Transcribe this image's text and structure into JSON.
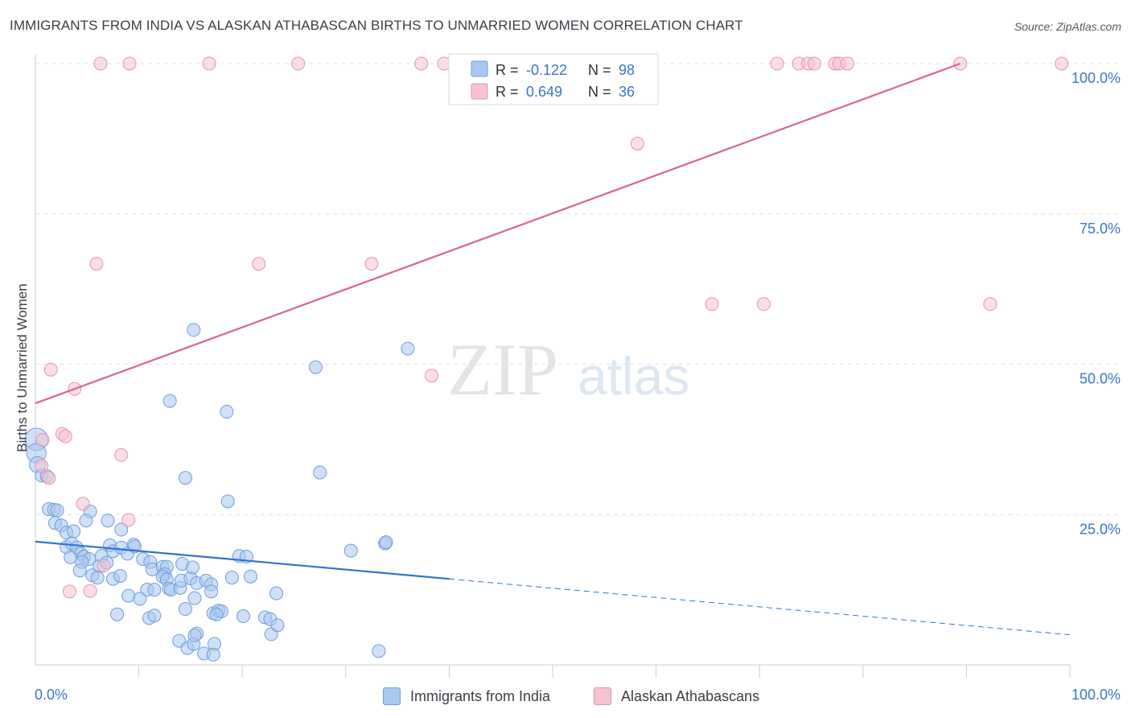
{
  "header": {
    "title": "IMMIGRANTS FROM INDIA VS ALASKAN ATHABASCAN BIRTHS TO UNMARRIED WOMEN CORRELATION CHART",
    "source": "Source: ZipAtlas.com"
  },
  "watermark": {
    "zip": "ZIP",
    "atlas": "atlas"
  },
  "colors": {
    "blue_fill": "#a9c7ef",
    "blue_stroke": "#6d9de0",
    "blue_line": "#2f74d0",
    "pink_fill": "#f6c2d0",
    "pink_stroke": "#e891ab",
    "pink_line": "#e0628a",
    "axis_text": "#3b74c9",
    "grid": "#dde1e7"
  },
  "legend": {
    "r_label": "R =",
    "n_label": "N =",
    "india": {
      "r": "-0.122",
      "n": "98"
    },
    "athabascan": {
      "r": "0.649",
      "n": "36"
    }
  },
  "bottom_legend": {
    "india": "Immigrants from India",
    "athabascan": "Alaskan Athabascans"
  },
  "chart_data": {
    "type": "scatter",
    "title": "IMMIGRANTS FROM INDIA VS ALASKAN ATHABASCAN BIRTHS TO UNMARRIED WOMEN CORRELATION CHART",
    "xlabel": "",
    "ylabel": "Births to Unmarried Women",
    "xlim": [
      0,
      100
    ],
    "ylim": [
      0,
      100
    ],
    "x_tick_labels": {
      "min": "0.0%",
      "max": "100.0%"
    },
    "y_ticks": [
      {
        "value": 25,
        "label": "25.0%"
      },
      {
        "value": 50,
        "label": "50.0%"
      },
      {
        "value": 75,
        "label": "75.0%"
      },
      {
        "value": 100,
        "label": "100.0%"
      }
    ],
    "series": [
      {
        "name": "Immigrants from India",
        "r": -0.122,
        "n": 98,
        "trend": {
          "x0": 0,
          "y0": 20.5,
          "x1": 100,
          "y1": 5.0,
          "solid_until": 40
        },
        "points": [
          [
            0.1,
            37.5,
            14
          ],
          [
            0.1,
            35.2,
            12
          ],
          [
            0.2,
            33.3,
            10
          ],
          [
            0.6,
            31.5,
            8
          ],
          [
            1.1,
            31.4,
            8
          ],
          [
            1.3,
            25.9,
            8
          ],
          [
            1.8,
            25.8,
            8
          ],
          [
            2.1,
            25.7,
            8
          ],
          [
            1.9,
            23.6,
            8
          ],
          [
            2.5,
            23.2,
            8
          ],
          [
            3.0,
            22.0,
            8
          ],
          [
            3.7,
            22.2,
            8
          ],
          [
            5.3,
            25.5,
            8
          ],
          [
            4.9,
            24.0,
            8
          ],
          [
            7.0,
            24.0,
            8
          ],
          [
            8.3,
            22.5,
            8
          ],
          [
            3.0,
            19.6,
            8
          ],
          [
            3.5,
            20.2,
            8
          ],
          [
            4.0,
            19.5,
            8
          ],
          [
            4.4,
            18.5,
            8
          ],
          [
            4.7,
            18.0,
            8
          ],
          [
            3.4,
            17.9,
            8
          ],
          [
            5.2,
            17.6,
            8
          ],
          [
            4.5,
            17.1,
            8
          ],
          [
            4.3,
            15.7,
            8
          ],
          [
            5.5,
            14.9,
            8
          ],
          [
            6.2,
            16.4,
            8
          ],
          [
            6.4,
            18.1,
            8
          ],
          [
            6.0,
            14.5,
            8
          ],
          [
            6.9,
            17.0,
            8
          ],
          [
            7.2,
            19.9,
            8
          ],
          [
            7.5,
            18.9,
            8
          ],
          [
            7.5,
            14.3,
            8
          ],
          [
            8.3,
            19.5,
            8
          ],
          [
            8.2,
            14.8,
            8
          ],
          [
            8.9,
            18.5,
            8
          ],
          [
            9.5,
            20.0,
            8
          ],
          [
            9.6,
            19.7,
            8
          ],
          [
            10.4,
            17.6,
            8
          ],
          [
            11.1,
            17.1,
            8
          ],
          [
            11.3,
            15.9,
            8
          ],
          [
            10.8,
            12.5,
            8
          ],
          [
            9.0,
            11.5,
            8
          ],
          [
            10.1,
            11.0,
            8
          ],
          [
            11.5,
            12.5,
            8
          ],
          [
            12.3,
            16.3,
            8
          ],
          [
            12.7,
            16.3,
            8
          ],
          [
            12.5,
            15.1,
            8
          ],
          [
            12.3,
            14.7,
            8
          ],
          [
            12.7,
            14.2,
            8
          ],
          [
            12.9,
            12.7,
            8
          ],
          [
            13.1,
            12.5,
            8
          ],
          [
            14.0,
            12.8,
            8
          ],
          [
            14.1,
            14.0,
            8
          ],
          [
            14.2,
            16.8,
            8
          ],
          [
            15.0,
            14.4,
            8
          ],
          [
            15.2,
            16.2,
            8
          ],
          [
            14.5,
            9.3,
            8
          ],
          [
            15.4,
            11.1,
            8
          ],
          [
            15.6,
            13.6,
            8
          ],
          [
            16.5,
            14.0,
            8
          ],
          [
            17.0,
            13.4,
            8
          ],
          [
            17.0,
            12.2,
            8
          ],
          [
            17.2,
            8.6,
            8
          ],
          [
            17.7,
            9.0,
            8
          ],
          [
            18.0,
            8.9,
            8
          ],
          [
            17.5,
            8.4,
            8
          ],
          [
            13.9,
            4.0,
            8
          ],
          [
            14.7,
            2.8,
            8
          ],
          [
            15.3,
            3.5,
            8
          ],
          [
            15.6,
            5.2,
            8
          ],
          [
            16.3,
            1.9,
            8
          ],
          [
            17.3,
            3.5,
            8
          ],
          [
            19.7,
            18.1,
            8
          ],
          [
            20.4,
            18.0,
            8
          ],
          [
            19.0,
            14.5,
            8
          ],
          [
            20.8,
            14.7,
            8
          ],
          [
            20.1,
            8.1,
            8
          ],
          [
            22.2,
            7.9,
            8
          ],
          [
            22.7,
            7.6,
            8
          ],
          [
            22.8,
            5.1,
            8
          ],
          [
            23.4,
            6.6,
            8
          ],
          [
            23.3,
            11.9,
            8
          ],
          [
            11.0,
            7.8,
            8
          ],
          [
            11.5,
            8.2,
            8
          ],
          [
            15.4,
            4.9,
            8
          ],
          [
            17.2,
            1.7,
            8
          ],
          [
            7.9,
            8.4,
            8
          ],
          [
            13.0,
            43.9,
            8
          ],
          [
            14.5,
            31.1,
            8
          ],
          [
            15.3,
            55.7,
            8
          ],
          [
            18.5,
            42.1,
            8
          ],
          [
            18.6,
            27.2,
            8
          ],
          [
            27.1,
            49.5,
            8
          ],
          [
            27.5,
            32.0,
            8
          ],
          [
            30.5,
            19.0,
            8
          ],
          [
            33.8,
            20.2,
            8
          ],
          [
            33.9,
            20.4,
            8
          ],
          [
            36.0,
            52.6,
            8
          ],
          [
            33.2,
            2.3,
            8
          ]
        ]
      },
      {
        "name": "Alaskan Athabascans",
        "r": 0.649,
        "n": 36,
        "trend": {
          "x0": 0,
          "y0": 43.5,
          "x1": 89.4,
          "y1": 100.0
        },
        "points": [
          [
            6.3,
            100,
            8
          ],
          [
            9.1,
            100,
            8
          ],
          [
            16.8,
            100,
            8
          ],
          [
            25.4,
            100,
            8
          ],
          [
            37.3,
            100,
            8
          ],
          [
            39.5,
            100,
            8
          ],
          [
            71.7,
            100,
            8
          ],
          [
            73.8,
            100,
            8
          ],
          [
            74.7,
            100,
            8
          ],
          [
            75.3,
            100,
            8
          ],
          [
            77.3,
            100,
            8
          ],
          [
            77.7,
            100,
            8
          ],
          [
            78.5,
            100,
            8
          ],
          [
            89.4,
            100,
            8
          ],
          [
            99.2,
            100,
            8
          ],
          [
            58.2,
            86.7,
            8
          ],
          [
            5.9,
            66.7,
            8
          ],
          [
            21.6,
            66.7,
            8
          ],
          [
            32.5,
            66.7,
            8
          ],
          [
            65.4,
            60.0,
            8
          ],
          [
            70.4,
            60.0,
            8
          ],
          [
            92.3,
            60.0,
            8
          ],
          [
            38.3,
            48.1,
            8
          ],
          [
            1.5,
            49.1,
            8
          ],
          [
            3.8,
            45.9,
            8
          ],
          [
            0.7,
            37.4,
            8
          ],
          [
            2.6,
            38.4,
            8
          ],
          [
            2.9,
            38.0,
            8
          ],
          [
            8.3,
            34.9,
            8
          ],
          [
            0.6,
            33.1,
            8
          ],
          [
            1.3,
            31.1,
            8
          ],
          [
            4.6,
            26.8,
            8
          ],
          [
            9.0,
            24.1,
            8
          ],
          [
            3.3,
            12.2,
            8
          ],
          [
            5.3,
            12.3,
            8
          ],
          [
            6.6,
            16.5,
            8
          ]
        ]
      }
    ]
  }
}
